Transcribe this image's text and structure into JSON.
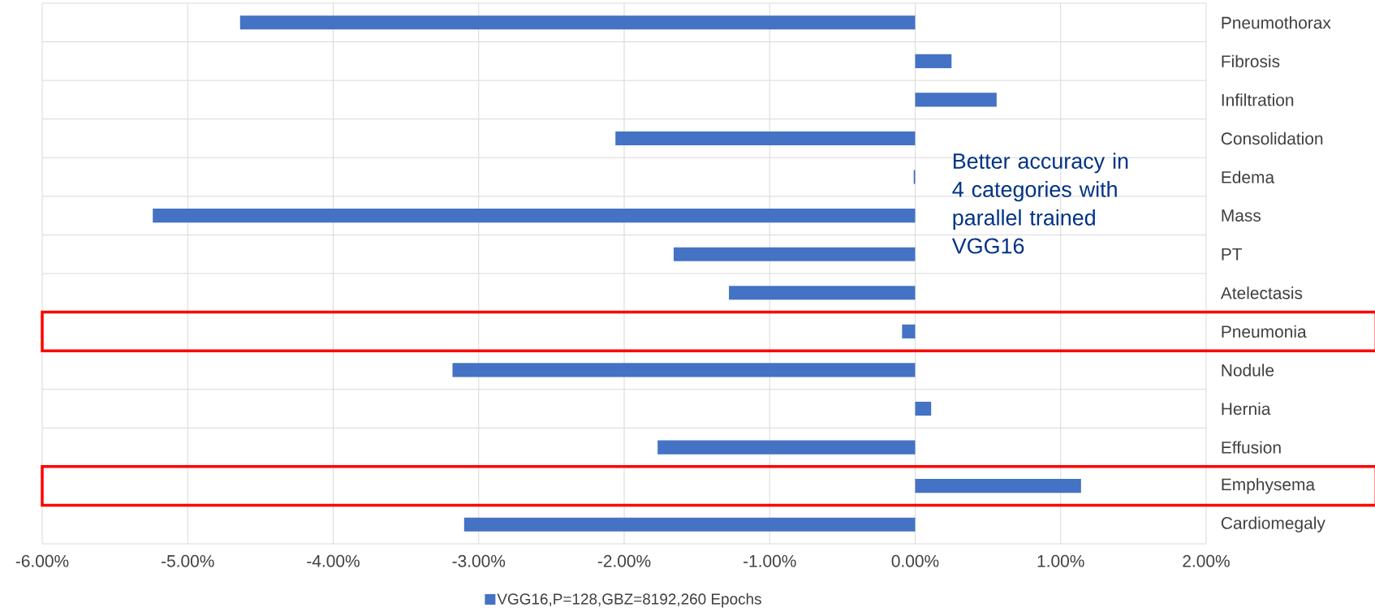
{
  "chart_data": {
    "type": "bar",
    "orientation": "horizontal",
    "categories": [
      "Pneumothorax",
      "Fibrosis",
      "Infiltration",
      "Consolidation",
      "Edema",
      "Mass",
      "PT",
      "Atelectasis",
      "Pneumonia",
      "Nodule",
      "Hernia",
      "Effusion",
      "Emphysema",
      "Cardiomegaly"
    ],
    "series": [
      {
        "name": "VGG16,P=128,GBZ=8192,260 Epochs",
        "color": "#4472c4",
        "values": [
          -4.64,
          0.25,
          0.56,
          -2.06,
          -0.01,
          -5.24,
          -1.66,
          -1.28,
          -0.09,
          -3.18,
          0.11,
          -1.77,
          1.14,
          -3.1
        ]
      }
    ],
    "xlim": [
      -6,
      2
    ],
    "xticks": [
      {
        "value": -6,
        "label": "-6.00%"
      },
      {
        "value": -5,
        "label": "-5.00%"
      },
      {
        "value": -4,
        "label": "-4.00%"
      },
      {
        "value": -3,
        "label": "-3.00%"
      },
      {
        "value": -2,
        "label": "-2.00%"
      },
      {
        "value": -1,
        "label": "-1.00%"
      },
      {
        "value": 0,
        "label": "0.00%"
      },
      {
        "value": 1,
        "label": "1.00%"
      },
      {
        "value": 2,
        "label": "2.00%"
      }
    ],
    "grid": true,
    "legend": "bottom",
    "annotations": [
      "Better accuracy in 4 categories with parallel trained VGG16"
    ]
  }
}
